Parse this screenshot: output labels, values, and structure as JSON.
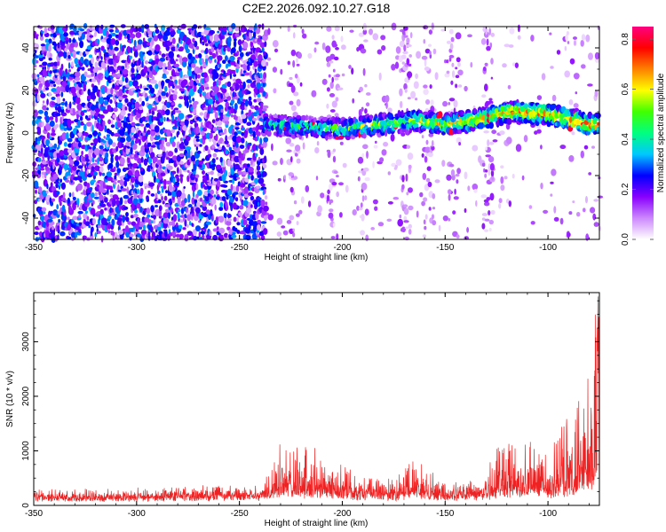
{
  "title": "C2E2.2026.092.10.27.G18",
  "chart_data": [
    {
      "type": "heatmap",
      "name": "spectrogram",
      "xlabel": "Height of straight line (km)",
      "ylabel": "Frequency (Hz)",
      "xlim": [
        -350,
        -75
      ],
      "ylim": [
        -50,
        50
      ],
      "xticks": [
        -350,
        -300,
        -250,
        -200,
        -150,
        -100
      ],
      "yticks": [
        -40,
        -20,
        0,
        20,
        40
      ],
      "colorbar": {
        "label": "Normalized spectral amplitude",
        "range": [
          0.0,
          0.85
        ],
        "ticks": [
          0.0,
          0.2,
          0.4,
          0.6,
          0.8
        ],
        "ticklabels": [
          "0.0",
          "0.2",
          "0.4",
          "0.6",
          "0.8"
        ],
        "colors": [
          "#ffffff",
          "#cc88ff",
          "#8800ff",
          "#0000ff",
          "#00c8ff",
          "#00ff80",
          "#40ff00",
          "#ffff00",
          "#ff8000",
          "#ff0000",
          "#ff0080"
        ]
      },
      "signal_onset_km": -238,
      "signal_center_hz": [
        {
          "x": -240,
          "y": 4
        },
        {
          "x": -220,
          "y": 3
        },
        {
          "x": -200,
          "y": 2
        },
        {
          "x": -180,
          "y": 4
        },
        {
          "x": -165,
          "y": 6
        },
        {
          "x": -150,
          "y": 4
        },
        {
          "x": -130,
          "y": 7
        },
        {
          "x": -120,
          "y": 10
        },
        {
          "x": -100,
          "y": 9
        },
        {
          "x": -80,
          "y": 4
        }
      ]
    },
    {
      "type": "line",
      "name": "snr",
      "xlabel": "Height of straight line (km)",
      "ylabel": "SNR (10 * v/v)",
      "xlim": [
        -350,
        -75
      ],
      "ylim": [
        0,
        3900
      ],
      "xticks": [
        -350,
        -300,
        -250,
        -200,
        -150,
        -100
      ],
      "yticks": [
        0,
        1000,
        2000,
        3000
      ],
      "color": "#ee2222",
      "envelope": [
        {
          "x": -350,
          "base": 150,
          "amp": 160
        },
        {
          "x": -300,
          "base": 160,
          "amp": 180
        },
        {
          "x": -240,
          "base": 200,
          "amp": 220
        },
        {
          "x": -230,
          "base": 300,
          "amp": 900
        },
        {
          "x": -210,
          "base": 280,
          "amp": 850
        },
        {
          "x": -195,
          "base": 220,
          "amp": 450
        },
        {
          "x": -175,
          "base": 200,
          "amp": 300
        },
        {
          "x": -165,
          "base": 250,
          "amp": 700
        },
        {
          "x": -150,
          "base": 200,
          "amp": 250
        },
        {
          "x": -130,
          "base": 220,
          "amp": 400
        },
        {
          "x": -125,
          "base": 300,
          "amp": 1000
        },
        {
          "x": -100,
          "base": 300,
          "amp": 900
        },
        {
          "x": -85,
          "base": 350,
          "amp": 1800
        },
        {
          "x": -76,
          "base": 600,
          "amp": 3300
        }
      ]
    }
  ]
}
